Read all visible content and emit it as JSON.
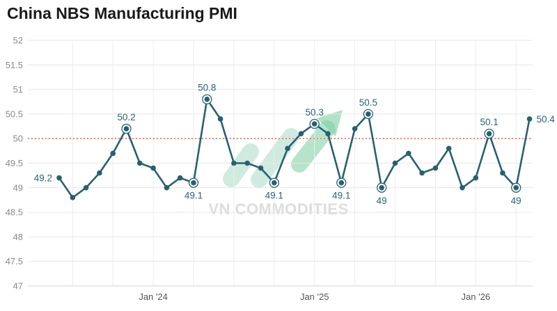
{
  "chart_data": {
    "type": "line",
    "title": "China NBS Manufacturing PMI",
    "xlabel": "",
    "ylabel": "",
    "ylim": [
      47,
      52
    ],
    "yticks": [
      47,
      47.5,
      48,
      48.5,
      49,
      49.5,
      50,
      50.5,
      51,
      51.5,
      52
    ],
    "xticks": [
      {
        "index": 7,
        "label": "Jan '24"
      },
      {
        "index": 19,
        "label": "Jan '25"
      },
      {
        "index": 31,
        "label": "Jan '26"
      }
    ],
    "reference_line": {
      "value": 50,
      "color": "#e8734a",
      "style": "dotted"
    },
    "grid": true,
    "line_color": "#27616f",
    "series": [
      {
        "name": "",
        "values": [
          49.2,
          48.8,
          49.0,
          49.3,
          49.7,
          50.2,
          49.5,
          49.4,
          49.0,
          49.2,
          49.1,
          50.8,
          50.4,
          49.5,
          49.5,
          49.4,
          49.1,
          49.8,
          50.1,
          50.3,
          50.1,
          49.1,
          50.2,
          50.5,
          49.0,
          49.5,
          49.7,
          49.3,
          49.4,
          49.8,
          49.0,
          49.2,
          50.1,
          49.3,
          49.0,
          50.4
        ]
      }
    ],
    "annotations": [
      {
        "index": 0,
        "label": "49.2",
        "ring": false,
        "pos": "left"
      },
      {
        "index": 5,
        "label": "50.2",
        "ring": true,
        "pos": "above"
      },
      {
        "index": 10,
        "label": "49.1",
        "ring": true,
        "pos": "below"
      },
      {
        "index": 11,
        "label": "50.8",
        "ring": true,
        "pos": "above"
      },
      {
        "index": 16,
        "label": "49.1",
        "ring": true,
        "pos": "below"
      },
      {
        "index": 19,
        "label": "50.3",
        "ring": true,
        "pos": "above"
      },
      {
        "index": 21,
        "label": "49.1",
        "ring": true,
        "pos": "below"
      },
      {
        "index": 23,
        "label": "50.5",
        "ring": true,
        "pos": "above"
      },
      {
        "index": 24,
        "label": "49",
        "ring": true,
        "pos": "below"
      },
      {
        "index": 32,
        "label": "50.1",
        "ring": true,
        "pos": "above"
      },
      {
        "index": 34,
        "label": "49",
        "ring": true,
        "pos": "below"
      },
      {
        "index": 35,
        "label": "50.4",
        "ring": false,
        "pos": "right"
      }
    ]
  },
  "watermark": {
    "text": "VN COMMODITIES",
    "colors": [
      "#a8dcc8",
      "#7ccfa0"
    ]
  }
}
